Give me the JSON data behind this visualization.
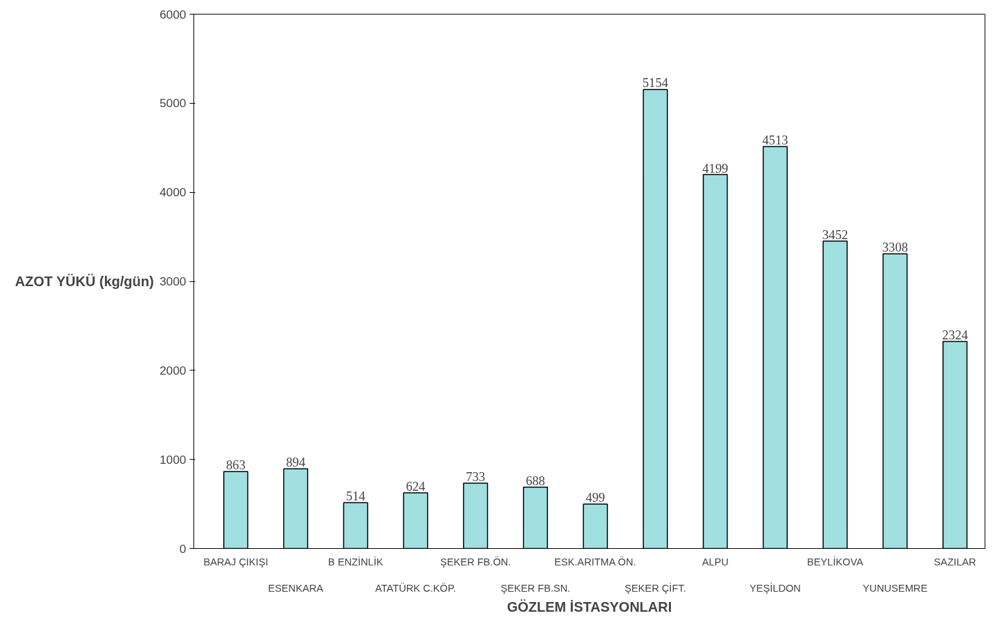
{
  "chart_data": {
    "type": "bar",
    "xlabel": "GÖZLEM İSTASYONLARI",
    "ylabel": "AZOT YÜKÜ (kg/gün)",
    "categories": [
      "BARAJ ÇIKIŞI",
      "ESENKARA",
      "B ENZİNLİK",
      "ATATÜRK C.KÖP.",
      "ŞEKER FB.ÖN.",
      "ŞEKER FB.SN.",
      "ESK.ARITMA ÖN.",
      "ŞEKER ÇİFT.",
      "ALPU",
      "YEŞİLDON",
      "BEYLİKOVA",
      "YUNUSEMRE",
      "SAZILAR"
    ],
    "values": [
      863,
      894,
      514,
      624,
      733,
      688,
      499,
      5154,
      4199,
      4513,
      3452,
      3308,
      2324
    ],
    "color": "#a0e0e0",
    "ylim": [
      0,
      6000
    ],
    "yticks": [
      0,
      1000,
      2000,
      3000,
      4000,
      5000,
      6000
    ],
    "grid": false,
    "data_labels": true
  }
}
